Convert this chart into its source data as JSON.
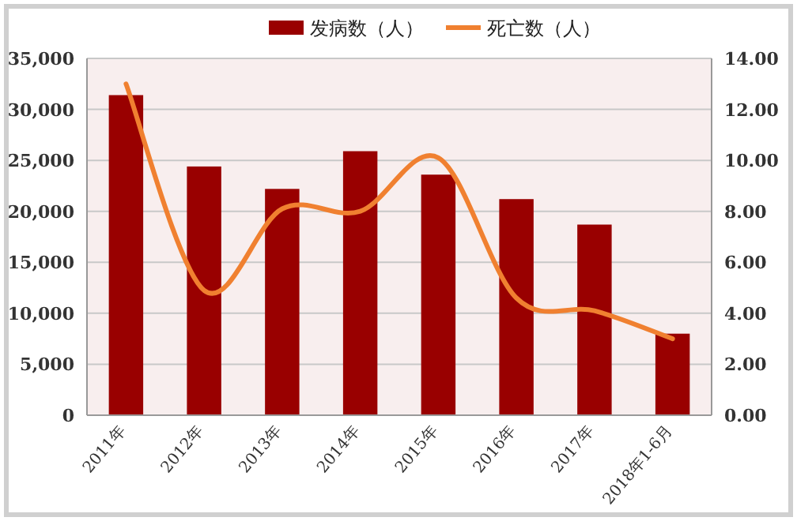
{
  "chart_data": {
    "type": "bar",
    "categories": [
      "2011年",
      "2012年",
      "2013年",
      "2014年",
      "2015年",
      "2016年",
      "2017年",
      "2018年1-6月"
    ],
    "series": [
      {
        "name": "发病数（人）",
        "color": "#990000",
        "values": [
          31400,
          24400,
          22200,
          25900,
          23600,
          21200,
          18700,
          8000
        ]
      },
      {
        "name": "死亡数（人）",
        "color": "#f08030",
        "type": "line",
        "axis": "y2",
        "values": [
          13,
          4.9,
          8.1,
          8,
          10.1,
          4.6,
          4.1,
          3
        ]
      }
    ],
    "ylim": [
      0,
      35000
    ],
    "yticks": [
      0,
      {
        "value": 5000,
        "label": "5,000"
      },
      {
        "value": 10000,
        "label": "10,000"
      },
      {
        "value": 15000,
        "label": "15,000"
      },
      {
        "value": 20000,
        "label": "20,000"
      },
      {
        "value": 25000,
        "label": "25,000"
      },
      {
        "value": 30000,
        "label": "30,000"
      },
      {
        "value": 35000,
        "label": "35,000"
      }
    ],
    "y2lim": [
      0,
      14
    ],
    "y2ticks": [
      {
        "value": 0,
        "label": "0.00"
      },
      {
        "value": 2,
        "label": "2.00"
      },
      {
        "value": 4,
        "label": "4.00"
      },
      {
        "value": 6,
        "label": "6.00"
      },
      {
        "value": 8,
        "label": "8.00"
      },
      {
        "value": 10,
        "label": "10.00"
      },
      {
        "value": 12,
        "label": "12.00"
      },
      {
        "value": 14,
        "label": "14.00"
      }
    ],
    "grid": "y",
    "legend": "top",
    "marker": "none",
    "line_style": "solid"
  }
}
